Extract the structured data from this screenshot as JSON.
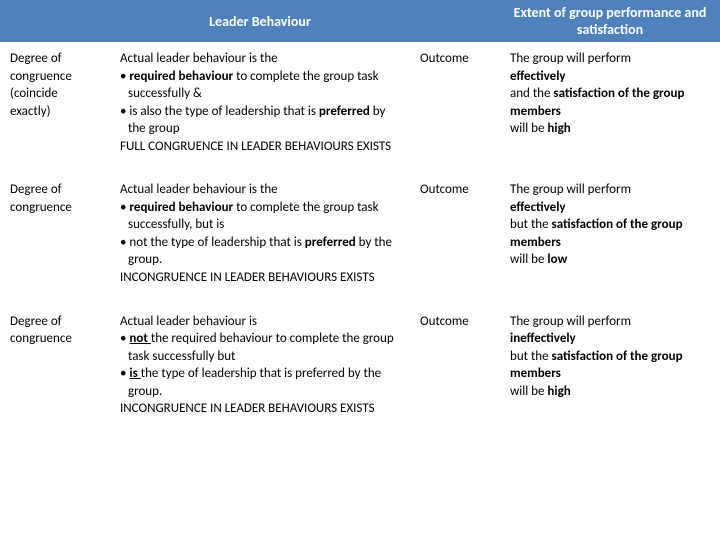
{
  "header_bg": "#4f81bd",
  "header_fg": "#ffffff",
  "columns": {
    "c1": "",
    "c2": "Leader Behaviour",
    "c3": "",
    "c4": "Extent of group performance and satisfaction"
  },
  "rows": [
    {
      "degree_line1": "Degree of",
      "degree_line2": "congruence",
      "degree_line3": "(coincide",
      "degree_line4": "exactly)",
      "b_line1a": "Actual leader behaviour is the",
      "b_bullet1_pre": "• ",
      "b_bullet1_bold": "required behaviour ",
      "b_bullet1_post": "to complete the group task successfully &",
      "b_bullet2_pre": "• is also the type of leadership that is ",
      "b_bullet2_bold": "preferred ",
      "b_bullet2_post": "by the group",
      "b_line_last": "FULL CONGRUENCE IN LEADER BEHAVIOURS EXISTS",
      "outcome_label": "Outcome",
      "o_line1": "The group will perform",
      "o_line2_bold": "effectively",
      "o_line3a": "and the ",
      "o_line3b_bold": "satisfaction of the group members",
      "o_line4": "will be ",
      "o_line4_bold": "high"
    },
    {
      "degree_line1": "Degree of",
      "degree_line2": "congruence",
      "degree_line3": "",
      "degree_line4": "",
      "b_line1a": "Actual leader behaviour is the",
      "b_bullet1_pre": "• ",
      "b_bullet1_bold": "required behaviour ",
      "b_bullet1_post": "to complete the group task successfully, but is",
      "b_bullet2_pre": "• not the type of leadership that is ",
      "b_bullet2_bold": "preferred ",
      "b_bullet2_post": "by the group.",
      "b_line_last": "INCONGRUENCE IN LEADER BEHAVIOURS EXISTS",
      "outcome_label": "Outcome",
      "o_line1": "The group will perform",
      "o_line2_bold": "effectively",
      "o_line3a": "but the ",
      "o_line3b_bold": "satisfaction of the group members",
      "o_line4": "will be ",
      "o_line4_bold": "low"
    },
    {
      "degree_line1": "Degree of",
      "degree_line2": "congruence",
      "degree_line3": "",
      "degree_line4": "",
      "b_line1a": "Actual leader behaviour is",
      "b_bullet1_pre": "• ",
      "b_bullet1_bold_u": "not ",
      "b_bullet1_post": "the required behaviour to complete the group task successfully but",
      "b_bullet2_pre": "• ",
      "b_bullet2_bold_u": "is ",
      "b_bullet2_post2": "the type of leadership that is preferred by the group.",
      "b_line_last": "INCONGRUENCE IN LEADER BEHAVIOURS EXISTS",
      "outcome_label": "Outcome",
      "o_line1": "The group will perform",
      "o_line2_bold": "ineffectively",
      "o_line3a": "but the ",
      "o_line3b_bold": "satisfaction of the group members",
      "o_line4": "will be ",
      "o_line4_bold": "high"
    }
  ]
}
